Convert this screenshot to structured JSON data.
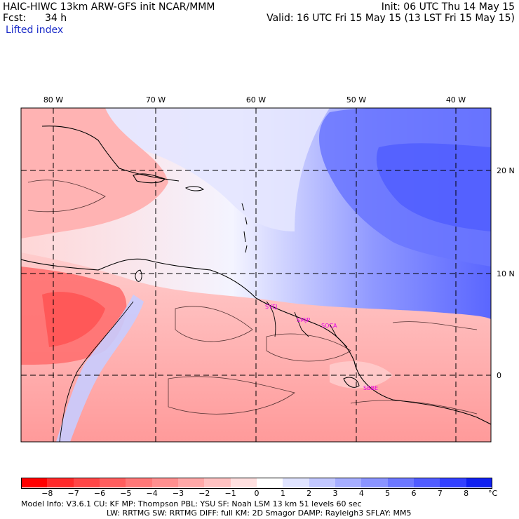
{
  "header": {
    "title": "HAIC-HIWC 13km ARW-GFS init   NCAR/MMM",
    "init": "Init: 06 UTC Thu 14 May 15",
    "fcst_label": "Fcst:",
    "fcst_value": "34 h",
    "valid": "Valid: 16 UTC Fri 15 May 15 (13 LST Fri 15 May 15)",
    "field": "Lifted index"
  },
  "map": {
    "lon_labels": [
      "80 W",
      "70 W",
      "60 W",
      "50 W",
      "40 W"
    ],
    "lat_labels": [
      "20 N",
      "10 N",
      "0"
    ],
    "stations": [
      "SYEJ",
      "SMJP",
      "SOCA",
      "SBBE"
    ]
  },
  "colorbar": {
    "ticks": [
      "−8",
      "−7",
      "−6",
      "−5",
      "−4",
      "−3",
      "−2",
      "−1",
      "0",
      "1",
      "2",
      "3",
      "4",
      "5",
      "6",
      "7",
      "8"
    ],
    "unit": "°C",
    "colors": [
      "#ff0000",
      "#ff2a2a",
      "#ff4646",
      "#ff5e5e",
      "#ff7878",
      "#ff8f8f",
      "#ffa8a8",
      "#ffc2c2",
      "#ffe0e0",
      "#ffffff",
      "#e0e4ff",
      "#c2c8ff",
      "#a6aeff",
      "#8a94ff",
      "#6c78ff",
      "#505cff",
      "#3240ff",
      "#1020f0"
    ]
  },
  "footer": {
    "line1": "Model Info: V3.6.1   CU: KF    MP: Thompson    PBL: YSU     SF: Noah LSM    13 km   51 levels   60 sec",
    "line2": "LW: RRTMG    SW: RRTMG   DIFF: full   KM: 2D Smagor DAMP: Rayleigh3  SFLAY: MM5"
  }
}
